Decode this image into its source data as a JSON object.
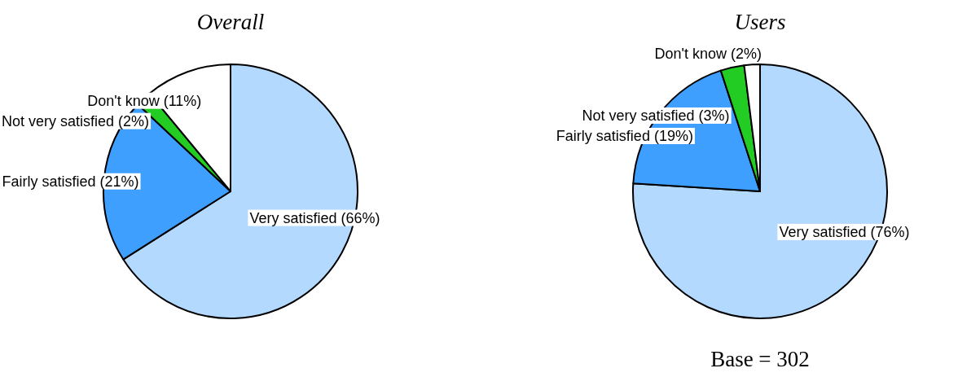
{
  "chart_data": [
    {
      "type": "pie",
      "title": "Overall",
      "categories": [
        "Very satisfied (66%)",
        "Fairly satisfied (21%)",
        "Not very satisfied (2%)",
        "Don't know (11%)"
      ],
      "values": [
        66,
        21,
        2,
        11
      ],
      "colors": [
        "#b3d9ff",
        "#3f9fff",
        "#22cc22",
        "#ffffff"
      ]
    },
    {
      "type": "pie",
      "title": "Users",
      "categories": [
        "Very satisfied (76%)",
        "Fairly satisfied (19%)",
        "Not very satisfied (3%)",
        "Don't know (2%)"
      ],
      "values": [
        76,
        19,
        3,
        2
      ],
      "colors": [
        "#b3d9ff",
        "#3f9fff",
        "#22cc22",
        "#ffffff"
      ],
      "annotations": [
        "Base = 302"
      ]
    }
  ]
}
